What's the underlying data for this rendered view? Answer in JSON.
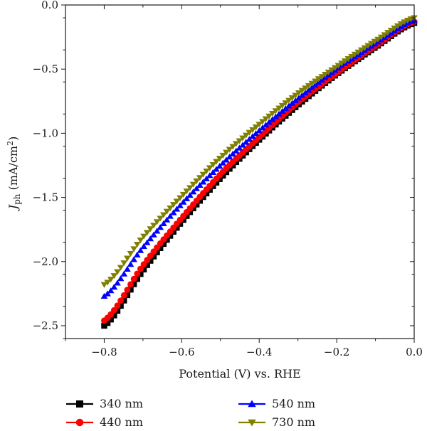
{
  "chart_data": {
    "type": "scatter",
    "title": "",
    "xlabel": "Potential (V) vs. RHE",
    "ylabel": "J_ph (mA/cm²)",
    "ylabel_parts": {
      "symbol": "J",
      "subscript": "ph",
      "unit_before": "(mA/cm",
      "unit_sup": "2",
      "unit_after": ")"
    },
    "xlim": [
      -0.9,
      0.0
    ],
    "ylim": [
      -2.6,
      0.0
    ],
    "xticks": [
      -0.8,
      -0.6,
      -0.4,
      -0.2,
      0.0
    ],
    "xtick_labels": [
      "−0.8",
      "−0.6",
      "−0.4",
      "−0.2",
      "0.0"
    ],
    "yticks": [
      0.0,
      -0.5,
      -1.0,
      -1.5,
      -2.0,
      -2.5
    ],
    "ytick_labels": [
      "0.0",
      "−0.5",
      "−1.0",
      "−1.5",
      "−2.0",
      "−2.5"
    ],
    "grid": false,
    "legend_position": "bottom, outside plot, two columns",
    "x_start": -0.8,
    "x_end": 0.0,
    "series": [
      {
        "name": "340 nm",
        "color": "#000000",
        "marker": "square",
        "x": [
          -0.8,
          -0.7,
          -0.6,
          -0.5,
          -0.4,
          -0.3,
          -0.2,
          -0.1,
          0.0
        ],
        "y": [
          -2.5,
          -2.07,
          -1.69,
          -1.35,
          -1.05,
          -0.78,
          -0.54,
          -0.33,
          -0.14
        ]
      },
      {
        "name": "440 nm",
        "color": "#ff0000",
        "marker": "circle",
        "x": [
          -0.8,
          -0.7,
          -0.6,
          -0.5,
          -0.4,
          -0.3,
          -0.2,
          -0.1,
          0.0
        ],
        "y": [
          -2.46,
          -2.03,
          -1.66,
          -1.32,
          -1.03,
          -0.76,
          -0.53,
          -0.32,
          -0.13
        ]
      },
      {
        "name": "540 nm",
        "color": "#0000ff",
        "marker": "triangle-up",
        "x": [
          -0.8,
          -0.7,
          -0.6,
          -0.5,
          -0.4,
          -0.3,
          -0.2,
          -0.1,
          0.0
        ],
        "y": [
          -2.27,
          -1.89,
          -1.55,
          -1.25,
          -0.98,
          -0.73,
          -0.5,
          -0.3,
          -0.12
        ]
      },
      {
        "name": "730 nm",
        "color": "#808000",
        "marker": "triangle-down",
        "x": [
          -0.8,
          -0.7,
          -0.6,
          -0.5,
          -0.4,
          -0.3,
          -0.2,
          -0.1,
          0.0
        ],
        "y": [
          -2.18,
          -1.81,
          -1.49,
          -1.19,
          -0.93,
          -0.69,
          -0.48,
          -0.28,
          -0.1
        ]
      }
    ]
  }
}
